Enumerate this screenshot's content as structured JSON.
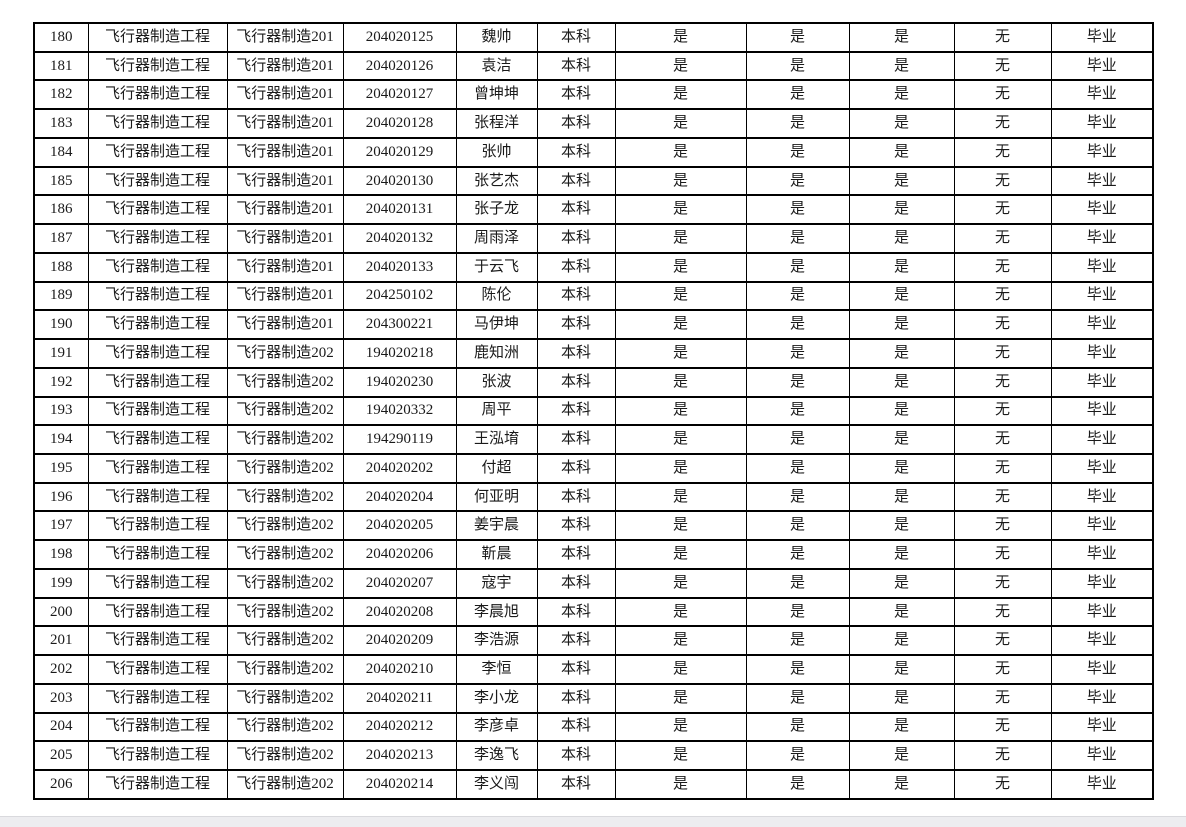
{
  "colors": {
    "page_background": "#ffffff",
    "table_border": "#000000",
    "cell_text": "#1a1a1a",
    "bottom_bar": "#ededf0",
    "bottom_bar_edge": "#d9d9dd"
  },
  "table": {
    "rows": [
      [
        "180",
        "飞行器制造工程",
        "飞行器制造201",
        "204020125",
        "魏帅",
        "本科",
        "是",
        "是",
        "是",
        "无",
        "毕业"
      ],
      [
        "181",
        "飞行器制造工程",
        "飞行器制造201",
        "204020126",
        "袁洁",
        "本科",
        "是",
        "是",
        "是",
        "无",
        "毕业"
      ],
      [
        "182",
        "飞行器制造工程",
        "飞行器制造201",
        "204020127",
        "曾坤坤",
        "本科",
        "是",
        "是",
        "是",
        "无",
        "毕业"
      ],
      [
        "183",
        "飞行器制造工程",
        "飞行器制造201",
        "204020128",
        "张程洋",
        "本科",
        "是",
        "是",
        "是",
        "无",
        "毕业"
      ],
      [
        "184",
        "飞行器制造工程",
        "飞行器制造201",
        "204020129",
        "张帅",
        "本科",
        "是",
        "是",
        "是",
        "无",
        "毕业"
      ],
      [
        "185",
        "飞行器制造工程",
        "飞行器制造201",
        "204020130",
        "张艺杰",
        "本科",
        "是",
        "是",
        "是",
        "无",
        "毕业"
      ],
      [
        "186",
        "飞行器制造工程",
        "飞行器制造201",
        "204020131",
        "张子龙",
        "本科",
        "是",
        "是",
        "是",
        "无",
        "毕业"
      ],
      [
        "187",
        "飞行器制造工程",
        "飞行器制造201",
        "204020132",
        "周雨泽",
        "本科",
        "是",
        "是",
        "是",
        "无",
        "毕业"
      ],
      [
        "188",
        "飞行器制造工程",
        "飞行器制造201",
        "204020133",
        "于云飞",
        "本科",
        "是",
        "是",
        "是",
        "无",
        "毕业"
      ],
      [
        "189",
        "飞行器制造工程",
        "飞行器制造201",
        "204250102",
        "陈伦",
        "本科",
        "是",
        "是",
        "是",
        "无",
        "毕业"
      ],
      [
        "190",
        "飞行器制造工程",
        "飞行器制造201",
        "204300221",
        "马伊坤",
        "本科",
        "是",
        "是",
        "是",
        "无",
        "毕业"
      ],
      [
        "191",
        "飞行器制造工程",
        "飞行器制造202",
        "194020218",
        "鹿知洲",
        "本科",
        "是",
        "是",
        "是",
        "无",
        "毕业"
      ],
      [
        "192",
        "飞行器制造工程",
        "飞行器制造202",
        "194020230",
        "张波",
        "本科",
        "是",
        "是",
        "是",
        "无",
        "毕业"
      ],
      [
        "193",
        "飞行器制造工程",
        "飞行器制造202",
        "194020332",
        "周平",
        "本科",
        "是",
        "是",
        "是",
        "无",
        "毕业"
      ],
      [
        "194",
        "飞行器制造工程",
        "飞行器制造202",
        "194290119",
        "王泓堉",
        "本科",
        "是",
        "是",
        "是",
        "无",
        "毕业"
      ],
      [
        "195",
        "飞行器制造工程",
        "飞行器制造202",
        "204020202",
        "付超",
        "本科",
        "是",
        "是",
        "是",
        "无",
        "毕业"
      ],
      [
        "196",
        "飞行器制造工程",
        "飞行器制造202",
        "204020204",
        "何亚明",
        "本科",
        "是",
        "是",
        "是",
        "无",
        "毕业"
      ],
      [
        "197",
        "飞行器制造工程",
        "飞行器制造202",
        "204020205",
        "姜宇晨",
        "本科",
        "是",
        "是",
        "是",
        "无",
        "毕业"
      ],
      [
        "198",
        "飞行器制造工程",
        "飞行器制造202",
        "204020206",
        "靳晨",
        "本科",
        "是",
        "是",
        "是",
        "无",
        "毕业"
      ],
      [
        "199",
        "飞行器制造工程",
        "飞行器制造202",
        "204020207",
        "寇宇",
        "本科",
        "是",
        "是",
        "是",
        "无",
        "毕业"
      ],
      [
        "200",
        "飞行器制造工程",
        "飞行器制造202",
        "204020208",
        "李晨旭",
        "本科",
        "是",
        "是",
        "是",
        "无",
        "毕业"
      ],
      [
        "201",
        "飞行器制造工程",
        "飞行器制造202",
        "204020209",
        "李浩源",
        "本科",
        "是",
        "是",
        "是",
        "无",
        "毕业"
      ],
      [
        "202",
        "飞行器制造工程",
        "飞行器制造202",
        "204020210",
        "李恒",
        "本科",
        "是",
        "是",
        "是",
        "无",
        "毕业"
      ],
      [
        "203",
        "飞行器制造工程",
        "飞行器制造202",
        "204020211",
        "李小龙",
        "本科",
        "是",
        "是",
        "是",
        "无",
        "毕业"
      ],
      [
        "204",
        "飞行器制造工程",
        "飞行器制造202",
        "204020212",
        "李彦卓",
        "本科",
        "是",
        "是",
        "是",
        "无",
        "毕业"
      ],
      [
        "205",
        "飞行器制造工程",
        "飞行器制造202",
        "204020213",
        "李逸飞",
        "本科",
        "是",
        "是",
        "是",
        "无",
        "毕业"
      ],
      [
        "206",
        "飞行器制造工程",
        "飞行器制造202",
        "204020214",
        "李义闯",
        "本科",
        "是",
        "是",
        "是",
        "无",
        "毕业"
      ]
    ]
  }
}
